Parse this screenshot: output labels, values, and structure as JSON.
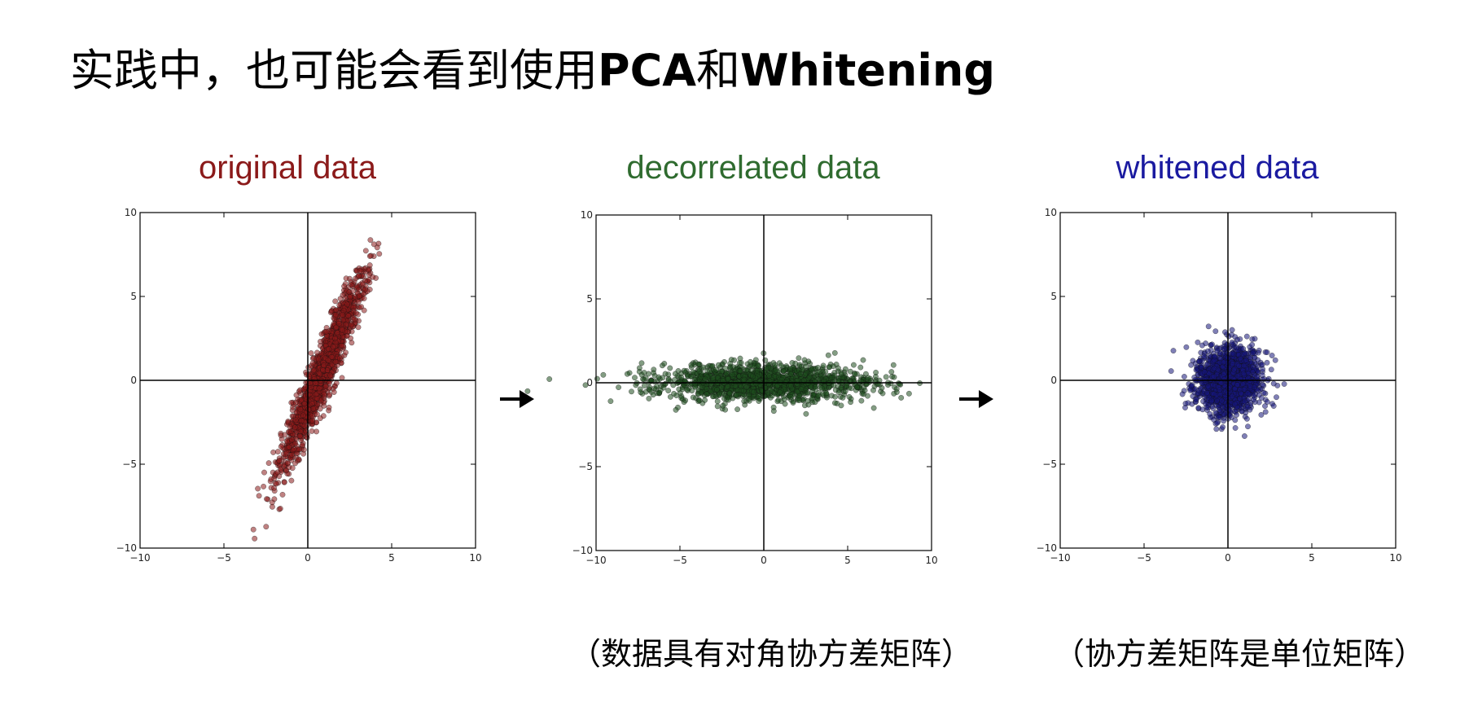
{
  "slide": {
    "title_prefix": "实践中，也可能会看到使用",
    "title_pca": "PCA",
    "title_and": "和",
    "title_whitening": "Whitening"
  },
  "captions": {
    "decorrelated": "（数据具有对角协方差矩阵）",
    "whitened": "（协方差矩阵是单位矩阵）"
  },
  "arrows": [
    "arrow-right-icon",
    "arrow-right-icon"
  ],
  "chart_data": [
    {
      "type": "scatter",
      "title": "original data",
      "title_color": "#8b1a1a",
      "point_color": "#8b1a1a",
      "xlabel": "",
      "ylabel": "",
      "xlim": [
        -10,
        10
      ],
      "ylim": [
        -10,
        10
      ],
      "xticks": [
        -10,
        -5,
        0,
        5,
        10
      ],
      "yticks": [
        -10,
        -5,
        0,
        5,
        10
      ],
      "grid": false,
      "axis_lines": true,
      "distribution": {
        "mean": [
          0.9,
          0.6
        ],
        "std": [
          1.3,
          3.0
        ],
        "correlation": 0.95,
        "n": 1500
      }
    },
    {
      "type": "scatter",
      "title": "decorrelated data",
      "title_color": "#2f6b2f",
      "point_color": "#1e4d1e",
      "xlabel": "",
      "ylabel": "",
      "xlim": [
        -10,
        10
      ],
      "ylim": [
        -10,
        10
      ],
      "xticks": [
        -10,
        -5,
        0,
        5,
        10
      ],
      "yticks": [
        -10,
        -5,
        0,
        5,
        10
      ],
      "grid": false,
      "axis_lines": true,
      "distribution": {
        "mean": [
          0.0,
          0.0
        ],
        "std": [
          3.2,
          0.55
        ],
        "correlation": 0.0,
        "n": 1500
      }
    },
    {
      "type": "scatter",
      "title": "whitened data",
      "title_color": "#1a1aa0",
      "point_color": "#15157a",
      "xlabel": "",
      "ylabel": "",
      "xlim": [
        -10,
        10
      ],
      "ylim": [
        -10,
        10
      ],
      "xticks": [
        -10,
        -5,
        0,
        5,
        10
      ],
      "yticks": [
        -10,
        -5,
        0,
        5,
        10
      ],
      "grid": false,
      "axis_lines": true,
      "distribution": {
        "mean": [
          0.0,
          0.0
        ],
        "std": [
          1.0,
          1.0
        ],
        "correlation": 0.0,
        "n": 1500
      }
    }
  ]
}
